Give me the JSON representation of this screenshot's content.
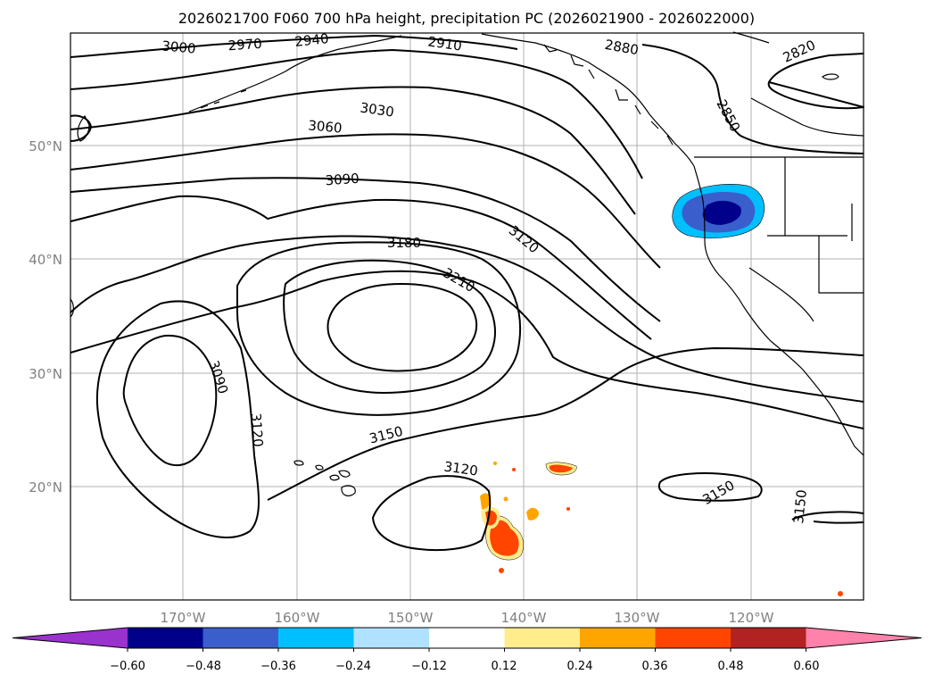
{
  "title": "2026021700 F060 700 hPa height, precipitation PC (2026021900 - 2026022000)",
  "lat_labels": [
    "50°N",
    "40°N",
    "30°N",
    "20°N"
  ],
  "lon_labels": [
    "170°W",
    "160°W",
    "150°W",
    "140°W",
    "130°W",
    "120°W"
  ],
  "contour_labels": [
    "3000",
    "2970",
    "2940",
    "2910",
    "2880",
    "2820",
    "2850",
    "3030",
    "3060",
    "3090",
    "3180",
    "3120",
    "3210",
    "3090",
    "3120",
    "3150",
    "3120",
    "3150",
    "3150"
  ],
  "colorbar": {
    "ticks": [
      "−0.60",
      "−0.48",
      "−0.36",
      "−0.24",
      "−0.12",
      "0.12",
      "0.24",
      "0.36",
      "0.48",
      "0.60"
    ],
    "colors": [
      "#9a32cd",
      "#00008b",
      "#3a5fcd",
      "#00bfff",
      "#b0e2ff",
      "#ffffff",
      "#ffec8b",
      "#ffa500",
      "#ff4500",
      "#b22222",
      "#ff82ab"
    ]
  },
  "precip_colors": {
    "neg_dark": "#00008b",
    "neg_mid": "#3a5fcd",
    "neg_light": "#00bfff",
    "pos_light": "#ffec8b",
    "pos_mid": "#ffa500",
    "pos_dark": "#ff4500"
  }
}
